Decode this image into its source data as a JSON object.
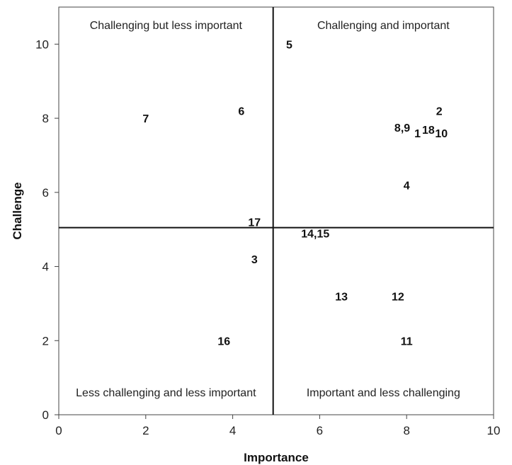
{
  "chart_data": {
    "type": "scatter",
    "title": "",
    "xlabel": "Importance",
    "ylabel": "Challenge",
    "xlim": [
      0,
      10
    ],
    "ylim": [
      0,
      11
    ],
    "xticks": [
      0,
      2,
      4,
      6,
      8,
      10
    ],
    "yticks": [
      0,
      2,
      4,
      6,
      8,
      10
    ],
    "grid": false,
    "dividers": {
      "x": 4.93,
      "y": 5.05
    },
    "quadrant_labels": {
      "top_left": "Challenging but less important",
      "top_right": "Challenging and important",
      "bottom_left": "Less challenging and less important",
      "bottom_right": "Important and less challenging"
    },
    "points": [
      {
        "label": "5",
        "x": 5.3,
        "y": 10.0
      },
      {
        "label": "7",
        "x": 2.0,
        "y": 8.0
      },
      {
        "label": "6",
        "x": 4.2,
        "y": 8.2
      },
      {
        "label": "2",
        "x": 8.75,
        "y": 8.2
      },
      {
        "label": "8,9",
        "x": 7.9,
        "y": 7.75
      },
      {
        "label": "1",
        "x": 8.25,
        "y": 7.6
      },
      {
        "label": "18",
        "x": 8.5,
        "y": 7.7
      },
      {
        "label": "10",
        "x": 8.8,
        "y": 7.6
      },
      {
        "label": "4",
        "x": 8.0,
        "y": 6.2
      },
      {
        "label": "17",
        "x": 4.5,
        "y": 5.2
      },
      {
        "label": "14,15",
        "x": 5.9,
        "y": 4.9
      },
      {
        "label": "3",
        "x": 4.5,
        "y": 4.2
      },
      {
        "label": "13",
        "x": 6.5,
        "y": 3.2
      },
      {
        "label": "12",
        "x": 7.8,
        "y": 3.2
      },
      {
        "label": "16",
        "x": 3.8,
        "y": 2.0
      },
      {
        "label": "11",
        "x": 8.0,
        "y": 2.0
      }
    ]
  }
}
